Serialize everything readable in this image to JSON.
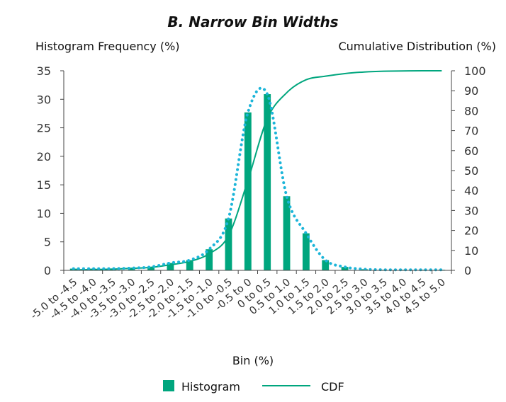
{
  "chart_data": {
    "type": "bar",
    "title": "B. Narrow Bin Widths",
    "y_left_label": "Histogram Frequency (%)",
    "y_right_label": "Cumulative Distribution (%)",
    "xlabel": "Bin (%)",
    "categories": [
      "-5.0 to -4.5",
      "-4.5 to -4.0",
      "-4.0 to -3.5",
      "-3.5 to -3.0",
      "-3.0 to -2.5",
      "-2.5 to -2.0",
      "-2.0 to -1.5",
      "-1.5 to -1.0",
      "-1.0 to -0.5",
      "-0.5 to 0",
      "0 to 0.5",
      "0.5 to 1.0",
      "1.0 to 1.5",
      "1.5 to 2.0",
      "2.0 to 2.5",
      "2.5 to 3.0",
      "3.0 to 3.5",
      "3.5 to 4.0",
      "4.0 to 4.5",
      "4.5 to 5.0"
    ],
    "left_ylim": [
      0,
      35
    ],
    "left_yticks": [
      0,
      5,
      10,
      15,
      20,
      25,
      30,
      35
    ],
    "right_ylim": [
      0,
      100
    ],
    "right_yticks": [
      0,
      10,
      20,
      30,
      40,
      50,
      60,
      70,
      80,
      90,
      100
    ],
    "series": [
      {
        "name": "Histogram",
        "type": "bar",
        "axis": "left",
        "color": "#00a67e",
        "values": [
          0.3,
          0.3,
          0.3,
          0.4,
          0.6,
          1.3,
          1.8,
          3.7,
          9.1,
          27.7,
          30.9,
          13.0,
          6.5,
          1.8,
          0.6,
          0.2,
          0.1,
          0.1,
          0.1,
          0.1
        ]
      },
      {
        "type": "dotted-line",
        "axis": "left",
        "color": "#1cb5d9",
        "values": [
          0.3,
          0.3,
          0.3,
          0.4,
          0.6,
          1.3,
          1.8,
          3.7,
          9.1,
          27.7,
          30.9,
          13.0,
          6.5,
          1.8,
          0.6,
          0.2,
          0.1,
          0.1,
          0.1,
          0.1
        ]
      },
      {
        "name": "CDF",
        "type": "line",
        "axis": "right",
        "color": "#00a67e",
        "values": [
          0.2,
          0.4,
          0.6,
          1.0,
          1.5,
          2.8,
          4.5,
          8.3,
          17.4,
          45.1,
          76.0,
          89.0,
          95.5,
          97.3,
          98.6,
          99.4,
          99.8,
          99.9,
          100,
          100
        ]
      }
    ],
    "legend": {
      "position": "bottom",
      "items": [
        "Histogram",
        "CDF"
      ]
    },
    "grid": false
  }
}
